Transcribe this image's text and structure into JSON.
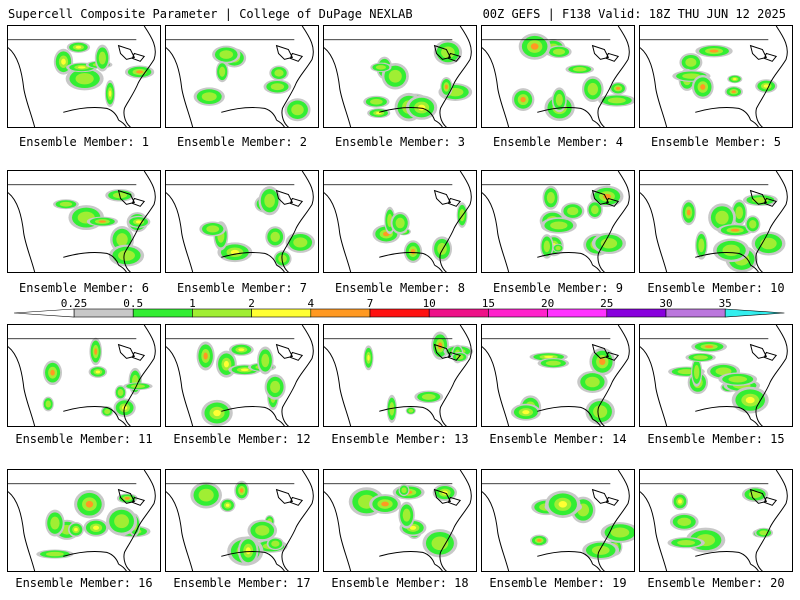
{
  "header": {
    "title": "Supercell Composite Parameter | College of DuPage NEXLAB",
    "run": "00Z GEFS | F138 Valid: 18Z THU JUN 12 2025"
  },
  "colorbar": {
    "ticks": [
      "0.25",
      "0.5",
      "1",
      "2",
      "4",
      "7",
      "10",
      "15",
      "20",
      "25",
      "30",
      "35"
    ],
    "colors": [
      "#c8c8c8",
      "#33ee33",
      "#a0ee33",
      "#ffff33",
      "#ff9922",
      "#ff1111",
      "#ee1188",
      "#ff22cc",
      "#ff33ff",
      "#8800dd",
      "#bb77dd",
      "#33eeee"
    ]
  },
  "panels": [
    {
      "label": "Ensemble Member: 1"
    },
    {
      "label": "Ensemble Member: 2"
    },
    {
      "label": "Ensemble Member: 3"
    },
    {
      "label": "Ensemble Member: 4"
    },
    {
      "label": "Ensemble Member: 5"
    },
    {
      "label": "Ensemble Member: 6"
    },
    {
      "label": "Ensemble Member: 7"
    },
    {
      "label": "Ensemble Member: 8"
    },
    {
      "label": "Ensemble Member: 9"
    },
    {
      "label": "Ensemble Member: 10"
    },
    {
      "label": "Ensemble Member: 11"
    },
    {
      "label": "Ensemble Member: 12"
    },
    {
      "label": "Ensemble Member: 13"
    },
    {
      "label": "Ensemble Member: 14"
    },
    {
      "label": "Ensemble Member: 15"
    },
    {
      "label": "Ensemble Member: 16"
    },
    {
      "label": "Ensemble Member: 17"
    },
    {
      "label": "Ensemble Member: 18"
    },
    {
      "label": "Ensemble Member: 19"
    },
    {
      "label": "Ensemble Member: 20"
    }
  ]
}
